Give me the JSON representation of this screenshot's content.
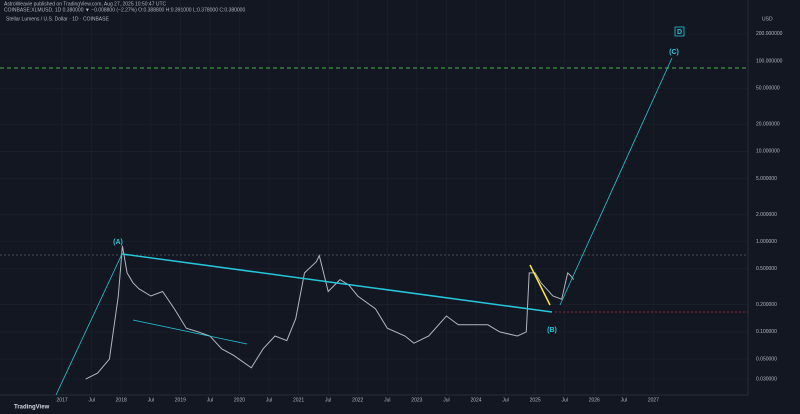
{
  "header": {
    "publisher": "AstroWeavie published on TradingView.com, Aug 27, 2025 10:50:47 UTC",
    "symbol_line": "COINBASE:XLMUSD, 1D 0.380000 ▼ −0.008800 (−2.27%) O:0.388800 H:0.391000 L:0.378000 C:0.380000",
    "brand": "TradingView"
  },
  "chart_data": {
    "type": "line",
    "title": "Stellar Lumens / U.S. Dollar · 1D · COINBASE",
    "currency": "USD",
    "color": "#b2b5be",
    "log_scale": true,
    "grid": true,
    "annotations": [
      "(A)",
      "(B)",
      "(C)",
      "D"
    ],
    "x": [
      2017.4,
      2017.6,
      2017.8,
      2017.95,
      2018.02,
      2018.1,
      2018.2,
      2018.3,
      2018.5,
      2018.7,
      2018.9,
      2019.1,
      2019.3,
      2019.5,
      2019.7,
      2019.9,
      2020.2,
      2020.4,
      2020.6,
      2020.8,
      2020.95,
      2021.1,
      2021.3,
      2021.35,
      2021.5,
      2021.7,
      2021.85,
      2022.0,
      2022.3,
      2022.5,
      2022.8,
      2022.95,
      2023.2,
      2023.5,
      2023.7,
      2023.9,
      2024.2,
      2024.4,
      2024.7,
      2024.85,
      2024.9,
      2025.0,
      2025.1,
      2025.3,
      2025.45,
      2025.55,
      2025.6,
      2025.65
    ],
    "values": [
      0.03,
      0.035,
      0.05,
      0.25,
      0.9,
      0.45,
      0.35,
      0.3,
      0.25,
      0.28,
      0.18,
      0.11,
      0.1,
      0.09,
      0.065,
      0.055,
      0.04,
      0.065,
      0.09,
      0.08,
      0.14,
      0.45,
      0.6,
      0.7,
      0.28,
      0.38,
      0.33,
      0.25,
      0.18,
      0.11,
      0.09,
      0.075,
      0.09,
      0.15,
      0.12,
      0.12,
      0.12,
      0.1,
      0.09,
      0.1,
      0.45,
      0.45,
      0.35,
      0.25,
      0.23,
      0.45,
      0.42,
      0.38
    ],
    "xlim": [
      2015.95,
      2028.6
    ],
    "xticks": [
      {
        "value": 2017,
        "label": "2017"
      },
      {
        "value": 2017.5,
        "label": "Jul"
      },
      {
        "value": 2018,
        "label": "2018"
      },
      {
        "value": 2018.5,
        "label": "Jul"
      },
      {
        "value": 2019,
        "label": "2019"
      },
      {
        "value": 2019.5,
        "label": "Jul"
      },
      {
        "value": 2020,
        "label": "2020"
      },
      {
        "value": 2020.5,
        "label": "Jul"
      },
      {
        "value": 2021,
        "label": "2021"
      },
      {
        "value": 2021.5,
        "label": "Jul"
      },
      {
        "value": 2022,
        "label": "2022"
      },
      {
        "value": 2022.5,
        "label": "Jul"
      },
      {
        "value": 2023,
        "label": "2023"
      },
      {
        "value": 2023.5,
        "label": "Jul"
      },
      {
        "value": 2024,
        "label": "2024"
      },
      {
        "value": 2024.5,
        "label": "Jul"
      },
      {
        "value": 2025,
        "label": "2025"
      },
      {
        "value": 2025.5,
        "label": "Jul"
      },
      {
        "value": 2026,
        "label": "2026"
      },
      {
        "value": 2026.5,
        "label": "Jul"
      },
      {
        "value": 2027,
        "label": "2027"
      }
    ],
    "ylim": [
      0.02,
      300
    ],
    "yticks": [
      {
        "value": 0.03,
        "label": "0.030000"
      },
      {
        "value": 0.05,
        "label": "0.050000"
      },
      {
        "value": 0.1,
        "label": "0.100000"
      },
      {
        "value": 0.2,
        "label": "0.200000"
      },
      {
        "value": 0.5,
        "label": "0.500000"
      },
      {
        "value": 1,
        "label": "1.000000"
      },
      {
        "value": 2,
        "label": "2.000000"
      },
      {
        "value": 5,
        "label": "5.000000"
      },
      {
        "value": 10,
        "label": "10.000000"
      },
      {
        "value": 20,
        "label": "20.000000"
      },
      {
        "value": 50,
        "label": "50.000000"
      },
      {
        "value": 100,
        "label": "100.000000"
      },
      {
        "value": 200,
        "label": "200.000000"
      }
    ]
  }
}
